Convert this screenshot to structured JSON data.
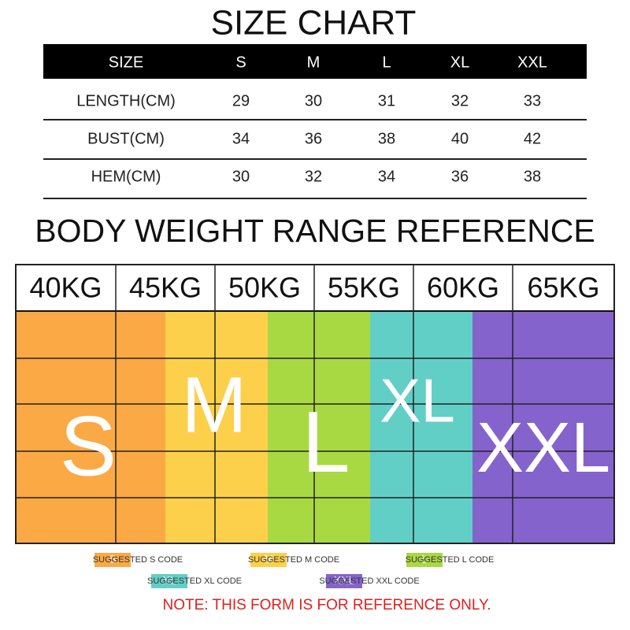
{
  "size_chart": {
    "title": "SIZE  CHART",
    "header": [
      "SIZE",
      "S",
      "M",
      "L",
      "XL",
      "XXL"
    ],
    "rows": [
      [
        "LENGTH(CM)",
        29,
        30,
        31,
        32,
        33
      ],
      [
        "BUST(CM)",
        34,
        36,
        38,
        40,
        42
      ],
      [
        "HEM(CM)",
        30,
        32,
        34,
        36,
        38
      ]
    ]
  },
  "weight_reference": {
    "title": "BODY WEIGHT RANGE REFERENCE",
    "weights": [
      "40KG",
      "45KG",
      "50KG",
      "55KG",
      "60KG",
      "65KG"
    ],
    "zones": [
      "S",
      "M",
      "L",
      "XL",
      "XXL"
    ]
  },
  "legend": [
    {
      "code": "S",
      "text": "SUGGESTED S CODE"
    },
    {
      "code": "M",
      "text": "SUGGESTED M CODE"
    },
    {
      "code": "L",
      "text": "SUGGESTED L CODE"
    },
    {
      "code": "XL",
      "text": "SUGGESTED XL CODE"
    },
    {
      "code": "XXL",
      "text": "SUGGESTED XXL CODE"
    }
  ],
  "note": "NOTE: THIS FORM IS FOR REFERENCE ONLY."
}
